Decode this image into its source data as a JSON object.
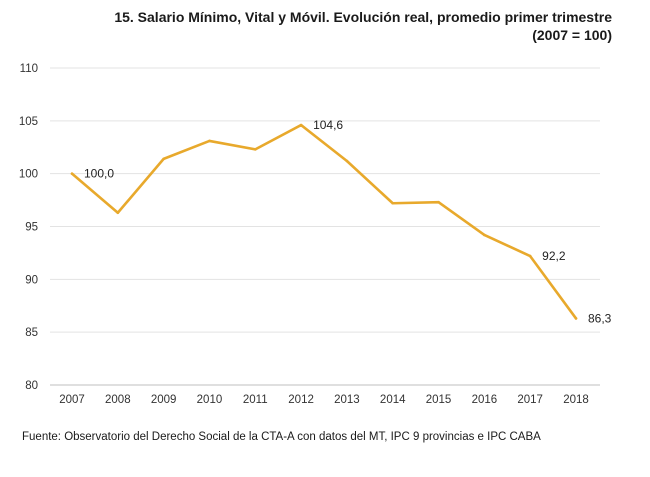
{
  "chart_data": {
    "type": "line",
    "title_line1": "15. Salario Mínimo, Vital y Móvil. Evolución real, promedio primer trimestre",
    "title_line2": "(2007 = 100)",
    "xlabel": "",
    "ylabel": "",
    "categories": [
      "2007",
      "2008",
      "2009",
      "2010",
      "2011",
      "2012",
      "2013",
      "2014",
      "2015",
      "2016",
      "2017",
      "2018"
    ],
    "series": [
      {
        "values": [
          100.0,
          96.3,
          101.4,
          103.1,
          102.3,
          104.6,
          101.2,
          97.2,
          97.3,
          94.2,
          92.2,
          86.3
        ],
        "color": "#E8A92C"
      }
    ],
    "data_labels": [
      {
        "index": 0,
        "text": "100,0"
      },
      {
        "index": 5,
        "text": "104,6"
      },
      {
        "index": 10,
        "text": "92,2"
      },
      {
        "index": 11,
        "text": "86,3"
      }
    ],
    "yticks": [
      80,
      85,
      90,
      95,
      100,
      105,
      110
    ],
    "ylim": [
      80,
      110
    ],
    "grid": true,
    "legend": "none",
    "source": "Fuente: Observatorio del Derecho Social de la CTA-A con datos del MT, IPC 9 provincias e IPC CABA"
  }
}
